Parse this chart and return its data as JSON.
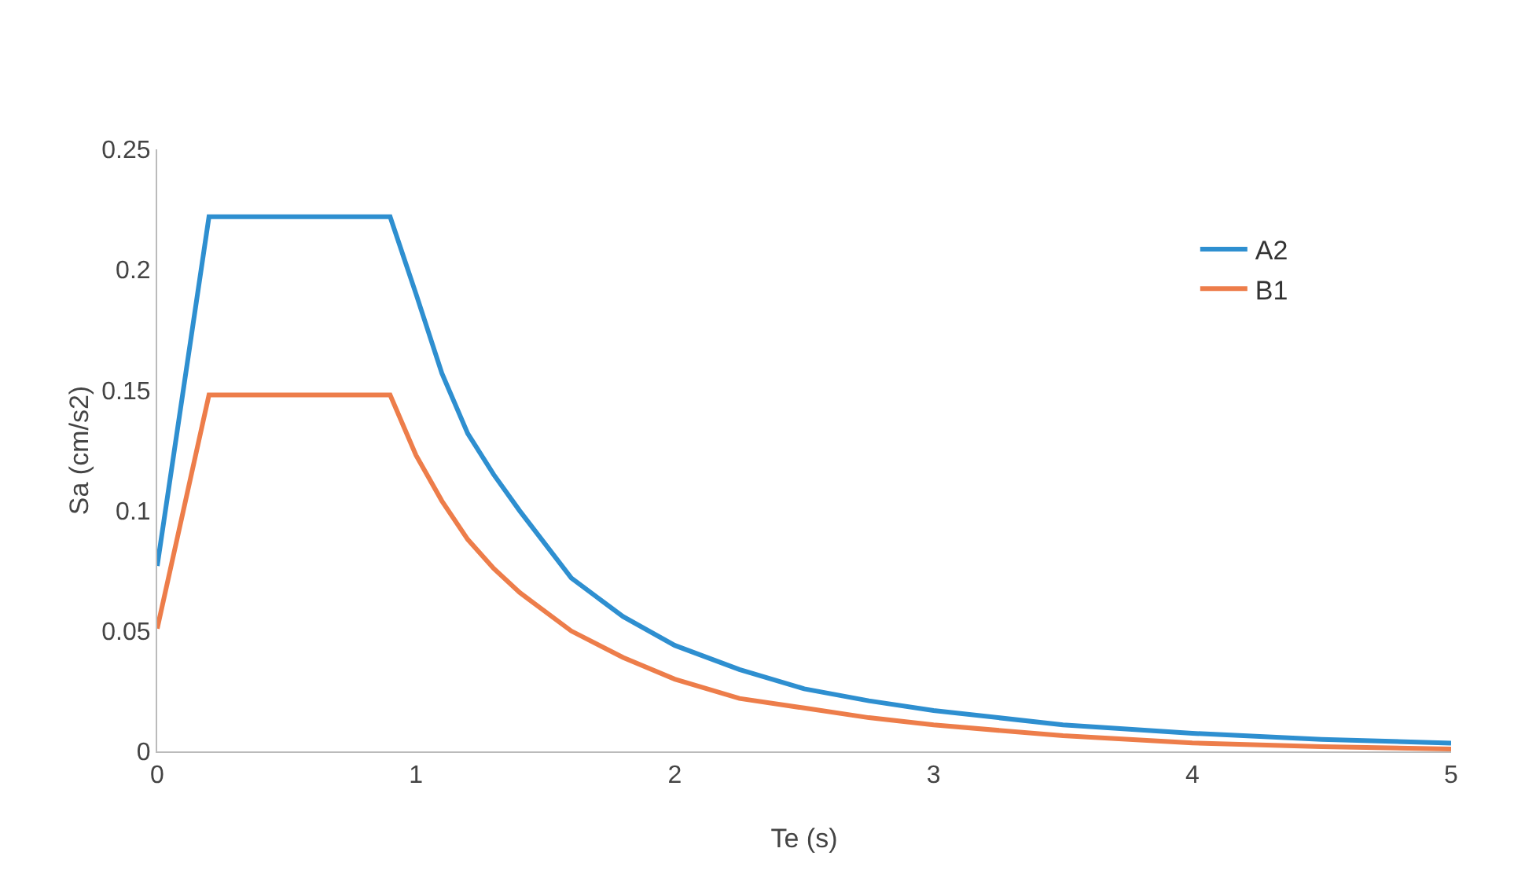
{
  "chart_data": {
    "type": "line",
    "xlabel": "Te (s)",
    "ylabel": "Sa (cm/s2)",
    "x": [
      0,
      0.2,
      0.9,
      1.0,
      1.1,
      1.2,
      1.3,
      1.4,
      1.6,
      1.8,
      2,
      2.25,
      2.5,
      2.75,
      3,
      3.5,
      4,
      4.5,
      5
    ],
    "series": [
      {
        "name": "A2",
        "color": "#2e8fd0",
        "values": [
          0.077,
          0.222,
          0.222,
          0.19,
          0.157,
          0.132,
          0.115,
          0.1,
          0.072,
          0.056,
          0.044,
          0.034,
          0.026,
          0.021,
          0.017,
          0.011,
          0.0075,
          0.005,
          0.0034
        ]
      },
      {
        "name": "B1",
        "color": "#ed7d4a",
        "values": [
          0.051,
          0.148,
          0.148,
          0.123,
          0.104,
          0.088,
          0.076,
          0.066,
          0.05,
          0.039,
          0.03,
          0.022,
          0.018,
          0.014,
          0.011,
          0.0065,
          0.0035,
          0.002,
          0.001
        ]
      }
    ],
    "xlim": [
      0,
      5
    ],
    "xticks": [
      0,
      1,
      2,
      3,
      4,
      5
    ],
    "ylim": [
      0,
      0.25
    ],
    "yticks": [
      0,
      0.05,
      0.1,
      0.15,
      0.2,
      0.25
    ],
    "grid": false,
    "legend": "top right",
    "marker": "none",
    "line_style": "solid"
  }
}
